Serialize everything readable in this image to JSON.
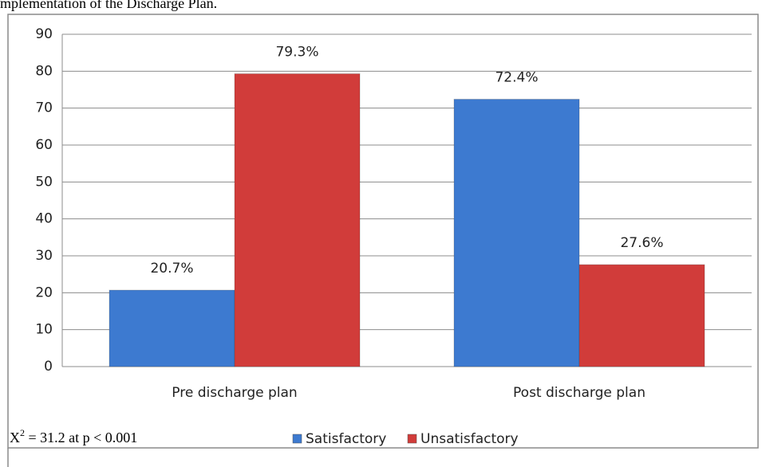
{
  "chart_data": {
    "type": "bar",
    "title": "mplementation of the Discharge Plan.",
    "categories": [
      "Pre discharge plan",
      "Post discharge plan"
    ],
    "series": [
      {
        "name": "Satisfactory",
        "color": "#3d7ad0",
        "values": [
          20.7,
          72.4
        ],
        "value_labels": [
          "20.7%",
          "72.4%"
        ]
      },
      {
        "name": "Unsatisfactory",
        "color": "#d13c3a",
        "values": [
          79.3,
          27.6
        ],
        "value_labels": [
          "79.3%",
          "27.6%"
        ]
      }
    ],
    "ylim": [
      0,
      90
    ],
    "yticks": [
      0,
      10,
      20,
      30,
      40,
      50,
      60,
      70,
      80,
      90
    ],
    "grid": true,
    "legend": "bottom",
    "annotation": {
      "base": "X",
      "sup": "2",
      "rest": " = 31.2 at p < 0.001"
    }
  }
}
